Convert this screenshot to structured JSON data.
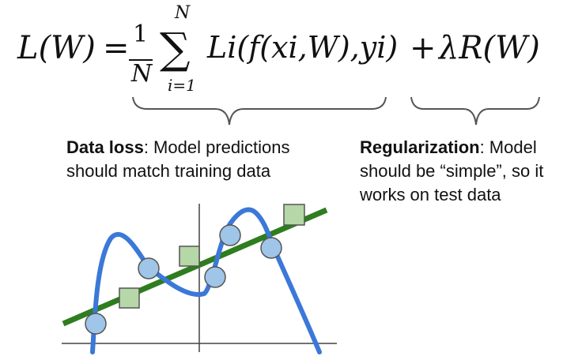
{
  "equation": {
    "lhs": "L(W)",
    "equals": "=",
    "frac_numerator": "1",
    "frac_denominator": "N",
    "sum_symbol": "∑",
    "sum_upper": "N",
    "sum_lower": "i=1",
    "data_term": "Li(f(xi,W),yi)",
    "plus": "+",
    "reg_term": "λR(W)"
  },
  "captions": {
    "data_loss_bold": "Data loss",
    "data_loss_rest_line1": ": Model predictions",
    "data_loss_line2": "should match training data",
    "reg_bold": "Regularization",
    "reg_rest_line1": ": Model",
    "reg_line2": "should be “simple”, so it",
    "reg_line3": "works on test data"
  },
  "colors": {
    "overfit_curve": "#3b78d8",
    "simple_line": "#2e7d1e",
    "circle_fill": "#9fc5e8",
    "square_fill": "#b6d7a8",
    "axis": "#444444",
    "brace": "#555555"
  }
}
